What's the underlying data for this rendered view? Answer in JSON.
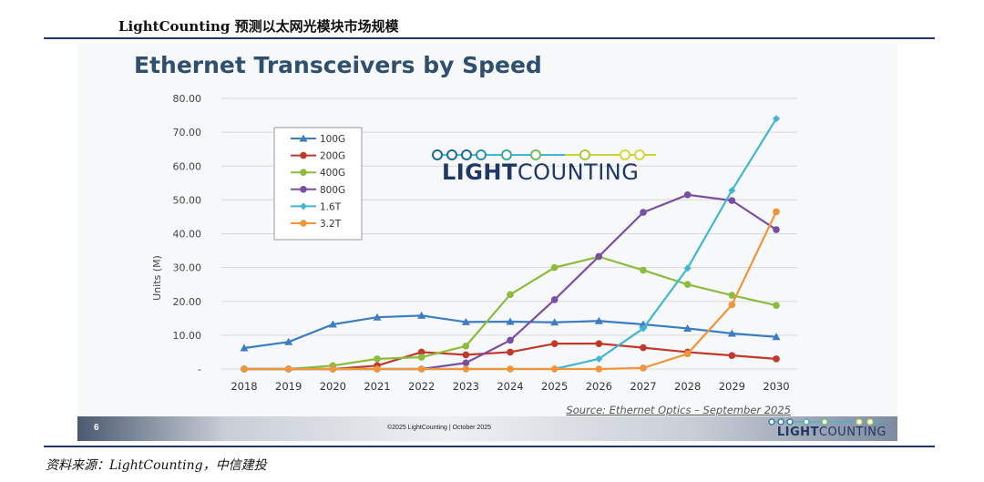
{
  "report_title": "LightCounting 预测以太网光模块市场规模",
  "caption": "资料来源：LightCounting，中信建投",
  "slide": {
    "page_number": "6",
    "copyright": "©2025 LightCounting | October 2025",
    "source": "Source: Ethernet Optics – September 2025",
    "logo_bold": "LIGHT",
    "logo_regular": "COUNTING"
  },
  "colors": {
    "100G": "#3b7dc4",
    "200G": "#c0392b",
    "400G": "#8dbb3c",
    "800G": "#7a4fa3",
    "1.6T": "#3fb7d3",
    "3.2T": "#f0953a"
  },
  "chart_data": {
    "type": "line",
    "title": "Ethernet Transceivers by Speed",
    "xlabel": "",
    "ylabel": "Units (M)",
    "ylim": [
      0,
      80
    ],
    "yticks": [
      "-",
      "10.00",
      "20.00",
      "30.00",
      "40.00",
      "50.00",
      "60.00",
      "70.00",
      "80.00"
    ],
    "grid": true,
    "legend_position": "top-left",
    "x": [
      "2018",
      "2019",
      "2020",
      "2021",
      "2022",
      "2023",
      "2024",
      "2025",
      "2026",
      "2027",
      "2028",
      "2029",
      "2030"
    ],
    "series": [
      {
        "name": "100G",
        "marker": "triangle",
        "values": [
          6.2,
          8,
          13.2,
          15.3,
          15.8,
          13.9,
          14,
          13.8,
          14.2,
          13.2,
          12,
          10.5,
          9.5
        ]
      },
      {
        "name": "200G",
        "marker": "circle",
        "values": [
          0,
          0,
          0,
          1,
          5,
          4.2,
          5,
          7.5,
          7.5,
          6.3,
          5,
          4,
          3
        ]
      },
      {
        "name": "400G",
        "marker": "circle",
        "values": [
          0,
          0,
          1,
          3,
          3.5,
          6.8,
          22,
          30,
          33.2,
          29.2,
          25,
          21.8,
          18.8
        ]
      },
      {
        "name": "800G",
        "marker": "circle",
        "values": [
          0,
          0,
          0,
          0,
          0,
          1.8,
          8.5,
          20.5,
          33.3,
          46.3,
          51.5,
          49.8,
          41.2
        ]
      },
      {
        "name": "1.6T",
        "marker": "diamond",
        "values": [
          0,
          0,
          0,
          0,
          0,
          0,
          0,
          0,
          3,
          12,
          29.8,
          52.8,
          74
        ]
      },
      {
        "name": "3.2T",
        "marker": "circle",
        "values": [
          0,
          0,
          0,
          0,
          0,
          0,
          0,
          0,
          0,
          0.3,
          4.5,
          19,
          46.5
        ]
      }
    ]
  }
}
